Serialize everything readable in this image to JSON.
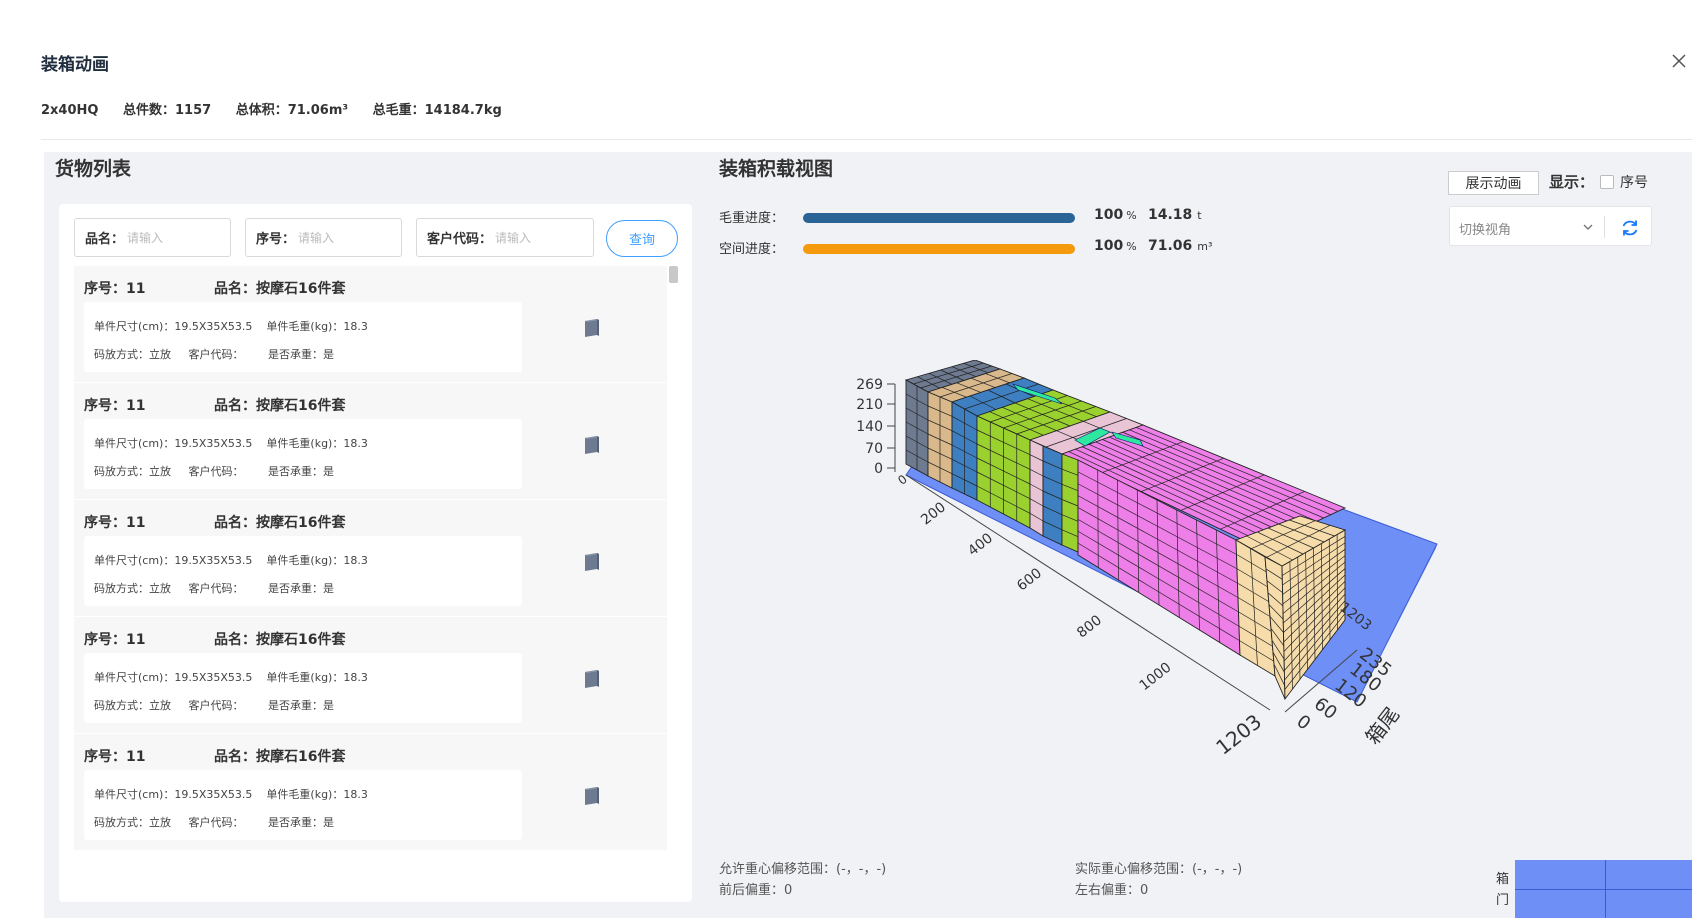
{
  "modal": {
    "title": "装箱动画",
    "close_icon": "close-icon"
  },
  "summary": {
    "container": "2x40HQ",
    "total_pieces": "总件数：1157",
    "total_volume": "总体积：71.06m³",
    "total_weight": "总毛重：14184.7kg"
  },
  "cargo_panel": {
    "title": "货物列表",
    "filters": [
      {
        "label": "品名：",
        "placeholder": "请输入"
      },
      {
        "label": "序号：",
        "placeholder": "请输入"
      },
      {
        "label": "客户代码：",
        "placeholder": "请输入"
      }
    ],
    "query_label": "查询",
    "items": [
      {
        "seq": "序号：11",
        "name": "品名：按摩石16件套",
        "size": "单件尺寸(cm)：19.5X35X53.5",
        "weight": "单件毛重(kg)：18.3",
        "stack": "码放方式：立放",
        "customer": "客户代码：",
        "load_bearing": "是否承重：是"
      },
      {
        "seq": "序号：11",
        "name": "品名：按摩石16件套",
        "size": "单件尺寸(cm)：19.5X35X53.5",
        "weight": "单件毛重(kg)：18.3",
        "stack": "码放方式：立放",
        "customer": "客户代码：",
        "load_bearing": "是否承重：是"
      },
      {
        "seq": "序号：11",
        "name": "品名：按摩石16件套",
        "size": "单件尺寸(cm)：19.5X35X53.5",
        "weight": "单件毛重(kg)：18.3",
        "stack": "码放方式：立放",
        "customer": "客户代码：",
        "load_bearing": "是否承重：是"
      },
      {
        "seq": "序号：11",
        "name": "品名：按摩石16件套",
        "size": "单件尺寸(cm)：19.5X35X53.5",
        "weight": "单件毛重(kg)：18.3",
        "stack": "码放方式：立放",
        "customer": "客户代码：",
        "load_bearing": "是否承重：是"
      },
      {
        "seq": "序号：11",
        "name": "品名：按摩石16件套",
        "size": "单件尺寸(cm)：19.5X35X53.5",
        "weight": "单件毛重(kg)：18.3",
        "stack": "码放方式：立放",
        "customer": "客户代码：",
        "load_bearing": "是否承重：是"
      }
    ]
  },
  "load_view": {
    "title": "装箱积载视图",
    "weight_progress": {
      "label": "毛重进度：",
      "percent": "100",
      "pct_unit": "%",
      "value": "14.18",
      "unit": "t",
      "fill": 1.0,
      "color": "#2a6496"
    },
    "space_progress": {
      "label": "空间进度：",
      "percent": "100",
      "pct_unit": "%",
      "value": "71.06",
      "unit": "m³",
      "fill": 1.0,
      "color": "#f59a0c"
    },
    "animate_label": "展示动画",
    "show_label": "显示：",
    "seq_checkbox_label": "序号",
    "view_select_placeholder": "切换视角",
    "refresh_icon": "refresh-icon",
    "axis": {
      "height_ticks": [
        "269",
        "210",
        "140",
        "70",
        "0"
      ],
      "length_ticks": [
        "0",
        "200",
        "400",
        "600",
        "800",
        "1000",
        "1203"
      ],
      "width_ticks": [
        "0",
        "60",
        "120",
        "180",
        "235"
      ],
      "front_top_tick": "1203",
      "rear_label": "箱尾"
    },
    "cg": {
      "allowed_range": "允许重心偏移范围：(-，-，-)",
      "actual_range": "实际重心偏移范围：(-，-，-)",
      "front_rear": "前后偏重：0",
      "left_right": "左右偏重：0"
    },
    "door_label": "箱门",
    "colors": {
      "container_floor": "#6e8ff5",
      "slate": "#6d7a8f",
      "tan": "#d9b88c",
      "steel_blue": "#3d7fc1",
      "lime": "#9ad12e",
      "pink_light": "#e8c4d4",
      "magenta": "#ee7ee8",
      "wheat": "#f5dcaa",
      "mint": "#2ee8a0"
    }
  }
}
